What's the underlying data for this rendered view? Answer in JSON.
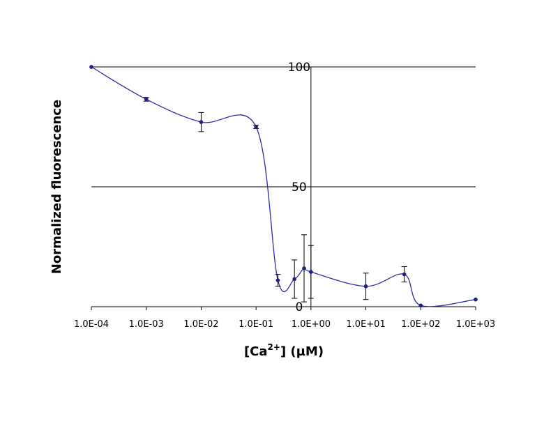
{
  "chart_data": {
    "type": "line",
    "title": "",
    "xlabel": {
      "prefix": "[Ca",
      "superscript": "2+",
      "suffix": "] (µM)"
    },
    "ylabel": "Normalized fluorescence",
    "x_scale": "log",
    "xlim": [
      0.0001,
      1000
    ],
    "ylim": [
      0,
      100
    ],
    "x_tick_labels": [
      "1.0E-04",
      "1.0E-03",
      "1.0E-02",
      "1.0E-01",
      "1.0E+00",
      "1.0E+01",
      "1.0E+02",
      "1.0E+03"
    ],
    "y_tick_labels": [
      "0",
      "50",
      "100"
    ],
    "y_ticks": [
      0,
      50,
      100
    ],
    "grid": "horizontal major gridlines",
    "legend": "none",
    "series_color": "#2b2ba8",
    "series": [
      {
        "x": [
          0.0001,
          0.001,
          0.01,
          0.1,
          0.25,
          0.5,
          0.75,
          1,
          10,
          50,
          100,
          1000
        ],
        "y": [
          100,
          86.5,
          77,
          75,
          11,
          11.5,
          16,
          14.5,
          8.5,
          13.5,
          0.5,
          3
        ],
        "error": [
          0,
          0.8,
          4,
          0.7,
          2.5,
          8,
          14,
          11,
          5.5,
          3.2,
          0,
          0
        ]
      }
    ]
  }
}
